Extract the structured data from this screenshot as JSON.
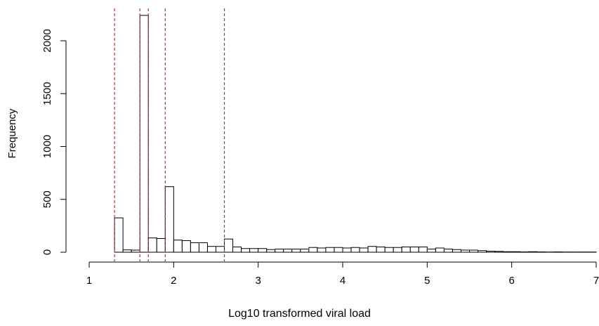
{
  "chart_data": {
    "type": "histogram",
    "title": "",
    "xlabel": "Log10 transformed viral load",
    "ylabel": "Frequency",
    "xlim": [
      1,
      7
    ],
    "ylim": [
      0,
      2250
    ],
    "x_ticks": [
      1,
      2,
      3,
      4,
      5,
      6,
      7
    ],
    "y_ticks": [
      0,
      500,
      1000,
      1500,
      2000
    ],
    "bin_width": 0.1,
    "bin_starts": [
      1.3,
      1.4,
      1.5,
      1.6,
      1.7,
      1.8,
      1.9,
      2.0,
      2.1,
      2.2,
      2.3,
      2.4,
      2.5,
      2.6,
      2.7,
      2.8,
      2.9,
      3.0,
      3.1,
      3.2,
      3.3,
      3.4,
      3.5,
      3.6,
      3.7,
      3.8,
      3.9,
      4.0,
      4.1,
      4.2,
      4.3,
      4.4,
      4.5,
      4.6,
      4.7,
      4.8,
      4.9,
      5.0,
      5.1,
      5.2,
      5.3,
      5.4,
      5.5,
      5.6,
      5.7,
      5.8,
      5.9,
      6.0,
      6.1,
      6.2,
      6.3,
      6.4,
      6.5,
      6.6,
      6.7,
      6.8,
      6.9
    ],
    "counts": [
      325,
      22,
      20,
      2240,
      135,
      130,
      620,
      115,
      110,
      90,
      90,
      55,
      55,
      125,
      50,
      35,
      35,
      35,
      25,
      30,
      30,
      30,
      30,
      45,
      40,
      45,
      45,
      40,
      45,
      40,
      55,
      50,
      45,
      45,
      50,
      50,
      50,
      30,
      40,
      30,
      25,
      20,
      20,
      15,
      10,
      8,
      5,
      5,
      3,
      5,
      3,
      2,
      3,
      2,
      2,
      2,
      2
    ],
    "reference_lines": [
      1.3,
      1.6,
      1.7,
      1.9,
      2.6
    ],
    "reference_line_color": "#dd1f1f",
    "bar_fill": "#ffffff",
    "bar_stroke": "#000000"
  }
}
